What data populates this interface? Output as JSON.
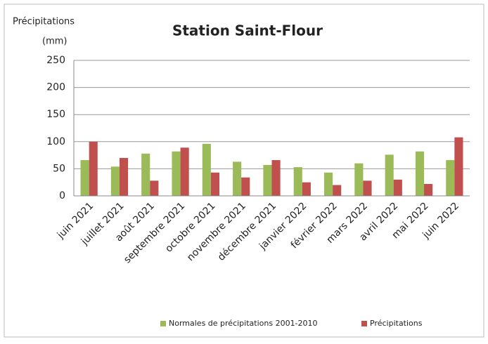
{
  "chart_data": {
    "type": "bar",
    "title": "Station Saint-Flour",
    "y_label": [
      "Précipitations",
      "(mm)"
    ],
    "categories": [
      "juin 2021",
      "juillet 2021",
      "août 2021",
      "septembre 2021",
      "octobre 2021",
      "novembre 2021",
      "décembre 2021",
      "janvier 2022",
      "février 2022",
      "mars 2022",
      "avril 2022",
      "mai 2022",
      "juin 2022"
    ],
    "series": [
      {
        "name": "Normales de précipitations 2001-2010",
        "color": "#9bbb59",
        "values": [
          66,
          54,
          78,
          82,
          96,
          63,
          57,
          53,
          43,
          60,
          76,
          82,
          66
        ]
      },
      {
        "name": "Précipitations",
        "color": "#c0504d",
        "values": [
          100,
          70,
          28,
          89,
          43,
          34,
          66,
          25,
          20,
          28,
          30,
          22,
          108
        ]
      }
    ],
    "ylim": [
      0,
      250
    ],
    "yticks": [
      0,
      50,
      100,
      150,
      200,
      250
    ],
    "grid": true,
    "legend": "bottom"
  }
}
